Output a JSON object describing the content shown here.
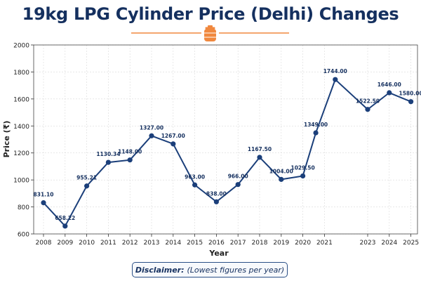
{
  "page": {
    "title": "19kg LPG Cylinder Price (Delhi) Changes",
    "icon": "gas-cylinder-icon",
    "accent_color": "#f0883e",
    "title_color": "#15305f",
    "line_color": "#1b3f7a"
  },
  "disclaimer": {
    "label": "Disclaimer:",
    "text": "(Lowest figures per year)"
  },
  "chart_data": {
    "type": "line",
    "title": "19kg LPG Cylinder Price (Delhi) Changes",
    "xlabel": "Year",
    "ylabel": "Price (₹)",
    "ylim": [
      600,
      2000
    ],
    "yticks": [
      600,
      800,
      1000,
      1200,
      1400,
      1600,
      1800,
      2000
    ],
    "xticks": [
      "2008",
      "2009",
      "2010",
      "2011",
      "2012",
      "2013",
      "2014",
      "2015",
      "2016",
      "2017",
      "2018",
      "2019",
      "2020",
      "2021",
      "2023",
      "2024",
      "2025"
    ],
    "grid": true,
    "points": [
      {
        "x": 2008.0,
        "value": 831.1,
        "label": "831.10"
      },
      {
        "x": 2009.0,
        "value": 658.22,
        "label": "658.22"
      },
      {
        "x": 2010.0,
        "value": 955.21,
        "label": "955.21"
      },
      {
        "x": 2011.0,
        "value": 1130.34,
        "label": "1130.34"
      },
      {
        "x": 2012.0,
        "value": 1148.0,
        "label": "1148.00"
      },
      {
        "x": 2013.0,
        "value": 1327.0,
        "label": "1327.00"
      },
      {
        "x": 2014.0,
        "value": 1267.0,
        "label": "1267.00"
      },
      {
        "x": 2015.0,
        "value": 963.0,
        "label": "963.00"
      },
      {
        "x": 2016.0,
        "value": 838.0,
        "label": "838.00"
      },
      {
        "x": 2017.0,
        "value": 966.0,
        "label": "966.00"
      },
      {
        "x": 2018.0,
        "value": 1167.5,
        "label": "1167.50"
      },
      {
        "x": 2019.0,
        "value": 1004.0,
        "label": "1004.00"
      },
      {
        "x": 2020.0,
        "value": 1029.5,
        "label": "1029.50"
      },
      {
        "x": 2020.6,
        "value": 1349.0,
        "label": "1349.00"
      },
      {
        "x": 2021.5,
        "value": 1744.0,
        "label": "1744.00"
      },
      {
        "x": 2023.0,
        "value": 1522.5,
        "label": "1522.50"
      },
      {
        "x": 2024.0,
        "value": 1646.0,
        "label": "1646.00"
      },
      {
        "x": 2025.0,
        "value": 1580.0,
        "label": "1580.00"
      }
    ]
  }
}
